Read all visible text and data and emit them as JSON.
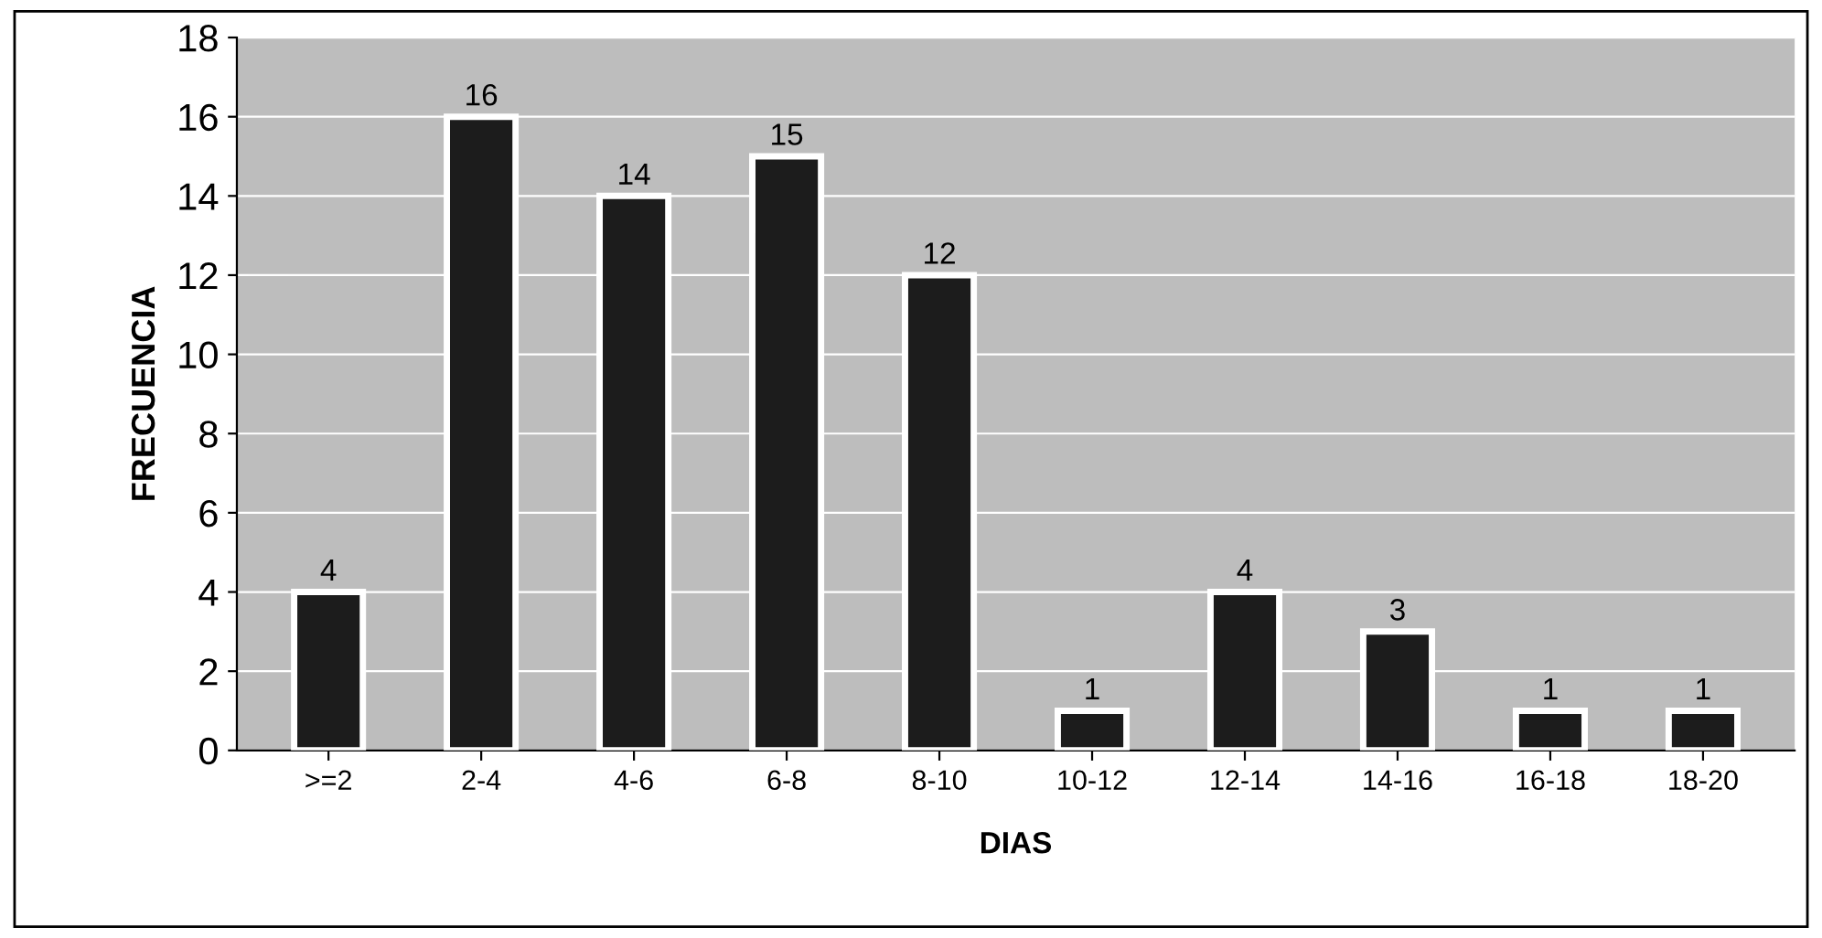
{
  "chart_data": {
    "type": "bar",
    "xlabel": "DIAS",
    "ylabel": "FRECUENCIA",
    "categories": [
      ">=2",
      "2-4",
      "4-6",
      "6-8",
      "8-10",
      "10-12",
      "12-14",
      "14-16",
      "16-18",
      "18-20"
    ],
    "values": [
      4,
      16,
      14,
      15,
      12,
      1,
      4,
      3,
      1,
      1
    ],
    "color": "#1c1c1c",
    "ylim": [
      0,
      18
    ],
    "yticks": [
      0,
      2,
      4,
      6,
      8,
      10,
      12,
      14,
      16,
      18
    ],
    "grid": "y",
    "data_labels": true
  }
}
